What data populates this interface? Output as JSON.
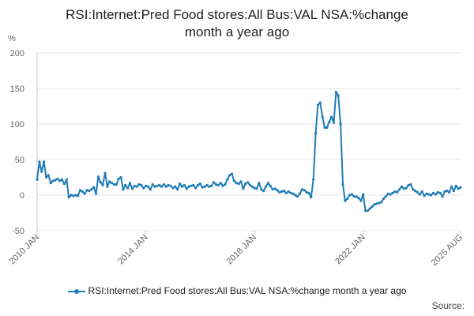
{
  "title_lines": [
    "RSI:Internet:Pred Food stores:All Bus:VAL NSA:%change",
    "month a year ago"
  ],
  "source_label": "Source:",
  "colors": {
    "series": "#1f7db5",
    "grid": "#e6e6e6",
    "text": "#666666"
  },
  "chart_data": {
    "type": "line",
    "title": "RSI:Internet:Pred Food stores:All Bus:VAL NSA:%change month a year ago",
    "ylabel": "%",
    "xlabel": "",
    "ylim": [
      -50,
      200
    ],
    "yticks": [
      "-50",
      "0",
      "50",
      "100",
      "150",
      "200"
    ],
    "xlim": [
      "2010-01",
      "2025-08"
    ],
    "xticks": [
      {
        "label": "2010 JAN",
        "date": "2010-01"
      },
      {
        "label": "2014 JAN",
        "date": "2014-01"
      },
      {
        "label": "2018 JAN",
        "date": "2018-01"
      },
      {
        "label": "2022 JAN",
        "date": "2022-01"
      },
      {
        "label": "2025 AUG",
        "date": "2025-08"
      }
    ],
    "grid": true,
    "legend_position": "bottom",
    "series": [
      {
        "name": "RSI:Internet:Pred Food stores:All Bus:VAL NSA:%change month a year ago",
        "values": [
          [
            "2010-01",
            22
          ],
          [
            "2010-02",
            47
          ],
          [
            "2010-03",
            33
          ],
          [
            "2010-04",
            47
          ],
          [
            "2010-05",
            25
          ],
          [
            "2010-06",
            28
          ],
          [
            "2010-07",
            17
          ],
          [
            "2010-08",
            20
          ],
          [
            "2010-09",
            21
          ],
          [
            "2010-10",
            23
          ],
          [
            "2010-11",
            20
          ],
          [
            "2010-12",
            22
          ],
          [
            "2011-01",
            16
          ],
          [
            "2011-02",
            22
          ],
          [
            "2011-03",
            -3
          ],
          [
            "2011-04",
            0
          ],
          [
            "2011-05",
            -1
          ],
          [
            "2011-06",
            0
          ],
          [
            "2011-07",
            -1
          ],
          [
            "2011-08",
            7
          ],
          [
            "2011-09",
            5
          ],
          [
            "2011-10",
            2
          ],
          [
            "2011-11",
            7
          ],
          [
            "2011-12",
            6
          ],
          [
            "2012-01",
            8
          ],
          [
            "2012-02",
            11
          ],
          [
            "2012-03",
            2
          ],
          [
            "2012-04",
            26
          ],
          [
            "2012-05",
            18
          ],
          [
            "2012-06",
            14
          ],
          [
            "2012-07",
            31
          ],
          [
            "2012-08",
            12
          ],
          [
            "2012-09",
            19
          ],
          [
            "2012-10",
            17
          ],
          [
            "2012-11",
            15
          ],
          [
            "2012-12",
            15
          ],
          [
            "2013-01",
            23
          ],
          [
            "2013-02",
            25
          ],
          [
            "2013-03",
            8
          ],
          [
            "2013-04",
            14
          ],
          [
            "2013-05",
            10
          ],
          [
            "2013-06",
            17
          ],
          [
            "2013-07",
            9
          ],
          [
            "2013-08",
            13
          ],
          [
            "2013-09",
            12
          ],
          [
            "2013-10",
            15
          ],
          [
            "2013-11",
            14
          ],
          [
            "2013-12",
            10
          ],
          [
            "2014-01",
            13
          ],
          [
            "2014-02",
            12
          ],
          [
            "2014-03",
            8
          ],
          [
            "2014-04",
            15
          ],
          [
            "2014-05",
            12
          ],
          [
            "2014-06",
            13
          ],
          [
            "2014-07",
            14
          ],
          [
            "2014-08",
            12
          ],
          [
            "2014-09",
            15
          ],
          [
            "2014-10",
            12
          ],
          [
            "2014-11",
            14
          ],
          [
            "2014-12",
            13
          ],
          [
            "2015-01",
            10
          ],
          [
            "2015-02",
            12
          ],
          [
            "2015-03",
            8
          ],
          [
            "2015-04",
            16
          ],
          [
            "2015-05",
            12
          ],
          [
            "2015-06",
            14
          ],
          [
            "2015-07",
            9
          ],
          [
            "2015-08",
            12
          ],
          [
            "2015-09",
            13
          ],
          [
            "2015-10",
            14
          ],
          [
            "2015-11",
            10
          ],
          [
            "2015-12",
            14
          ],
          [
            "2016-01",
            16
          ],
          [
            "2016-02",
            11
          ],
          [
            "2016-03",
            12
          ],
          [
            "2016-04",
            14
          ],
          [
            "2016-05",
            12
          ],
          [
            "2016-06",
            13
          ],
          [
            "2016-07",
            18
          ],
          [
            "2016-08",
            15
          ],
          [
            "2016-09",
            14
          ],
          [
            "2016-10",
            17
          ],
          [
            "2016-11",
            13
          ],
          [
            "2016-12",
            15
          ],
          [
            "2017-01",
            22
          ],
          [
            "2017-02",
            28
          ],
          [
            "2017-03",
            30
          ],
          [
            "2017-04",
            20
          ],
          [
            "2017-05",
            17
          ],
          [
            "2017-06",
            16
          ],
          [
            "2017-07",
            19
          ],
          [
            "2017-08",
            9
          ],
          [
            "2017-09",
            16
          ],
          [
            "2017-10",
            18
          ],
          [
            "2017-11",
            14
          ],
          [
            "2017-12",
            12
          ],
          [
            "2018-01",
            10
          ],
          [
            "2018-02",
            9
          ],
          [
            "2018-03",
            17
          ],
          [
            "2018-04",
            8
          ],
          [
            "2018-05",
            6
          ],
          [
            "2018-06",
            12
          ],
          [
            "2018-07",
            17
          ],
          [
            "2018-08",
            13
          ],
          [
            "2018-09",
            8
          ],
          [
            "2018-10",
            9
          ],
          [
            "2018-11",
            7
          ],
          [
            "2018-12",
            4
          ],
          [
            "2019-01",
            5
          ],
          [
            "2019-02",
            6
          ],
          [
            "2019-03",
            3
          ],
          [
            "2019-04",
            5
          ],
          [
            "2019-05",
            3
          ],
          [
            "2019-06",
            2
          ],
          [
            "2019-07",
            0
          ],
          [
            "2019-08",
            -2
          ],
          [
            "2019-09",
            2
          ],
          [
            "2019-10",
            8
          ],
          [
            "2019-11",
            7
          ],
          [
            "2019-12",
            4
          ],
          [
            "2020-01",
            3
          ],
          [
            "2020-02",
            -3
          ],
          [
            "2020-03",
            22
          ],
          [
            "2020-04",
            87
          ],
          [
            "2020-05",
            127
          ],
          [
            "2020-06",
            130
          ],
          [
            "2020-07",
            110
          ],
          [
            "2020-08",
            95
          ],
          [
            "2020-09",
            95
          ],
          [
            "2020-10",
            103
          ],
          [
            "2020-11",
            110
          ],
          [
            "2020-12",
            102
          ],
          [
            "2021-01",
            145
          ],
          [
            "2021-02",
            140
          ],
          [
            "2021-03",
            100
          ],
          [
            "2021-04",
            15
          ],
          [
            "2021-05",
            -8
          ],
          [
            "2021-06",
            -5
          ],
          [
            "2021-07",
            0
          ],
          [
            "2021-08",
            1
          ],
          [
            "2021-09",
            -2
          ],
          [
            "2021-10",
            -2
          ],
          [
            "2021-11",
            -4
          ],
          [
            "2021-12",
            -8
          ],
          [
            "2022-01",
            1
          ],
          [
            "2022-02",
            -22
          ],
          [
            "2022-03",
            -22
          ],
          [
            "2022-04",
            -19
          ],
          [
            "2022-05",
            -16
          ],
          [
            "2022-06",
            -13
          ],
          [
            "2022-07",
            -12
          ],
          [
            "2022-08",
            -11
          ],
          [
            "2022-09",
            -10
          ],
          [
            "2022-10",
            -5
          ],
          [
            "2022-11",
            -2
          ],
          [
            "2022-12",
            2
          ],
          [
            "2023-01",
            1
          ],
          [
            "2023-02",
            3
          ],
          [
            "2023-03",
            5
          ],
          [
            "2023-04",
            4
          ],
          [
            "2023-05",
            8
          ],
          [
            "2023-06",
            12
          ],
          [
            "2023-07",
            9
          ],
          [
            "2023-08",
            10
          ],
          [
            "2023-09",
            14
          ],
          [
            "2023-10",
            15
          ],
          [
            "2023-11",
            8
          ],
          [
            "2023-12",
            6
          ],
          [
            "2024-01",
            4
          ],
          [
            "2024-02",
            1
          ],
          [
            "2024-03",
            5
          ],
          [
            "2024-04",
            -1
          ],
          [
            "2024-05",
            2
          ],
          [
            "2024-06",
            1
          ],
          [
            "2024-07",
            0
          ],
          [
            "2024-08",
            3
          ],
          [
            "2024-09",
            1
          ],
          [
            "2024-10",
            4
          ],
          [
            "2024-11",
            3
          ],
          [
            "2024-12",
            -2
          ],
          [
            "2025-01",
            5
          ],
          [
            "2025-02",
            6
          ],
          [
            "2025-03",
            4
          ],
          [
            "2025-04",
            12
          ],
          [
            "2025-05",
            6
          ],
          [
            "2025-06",
            13
          ],
          [
            "2025-07",
            9
          ],
          [
            "2025-08",
            11
          ]
        ]
      }
    ]
  }
}
